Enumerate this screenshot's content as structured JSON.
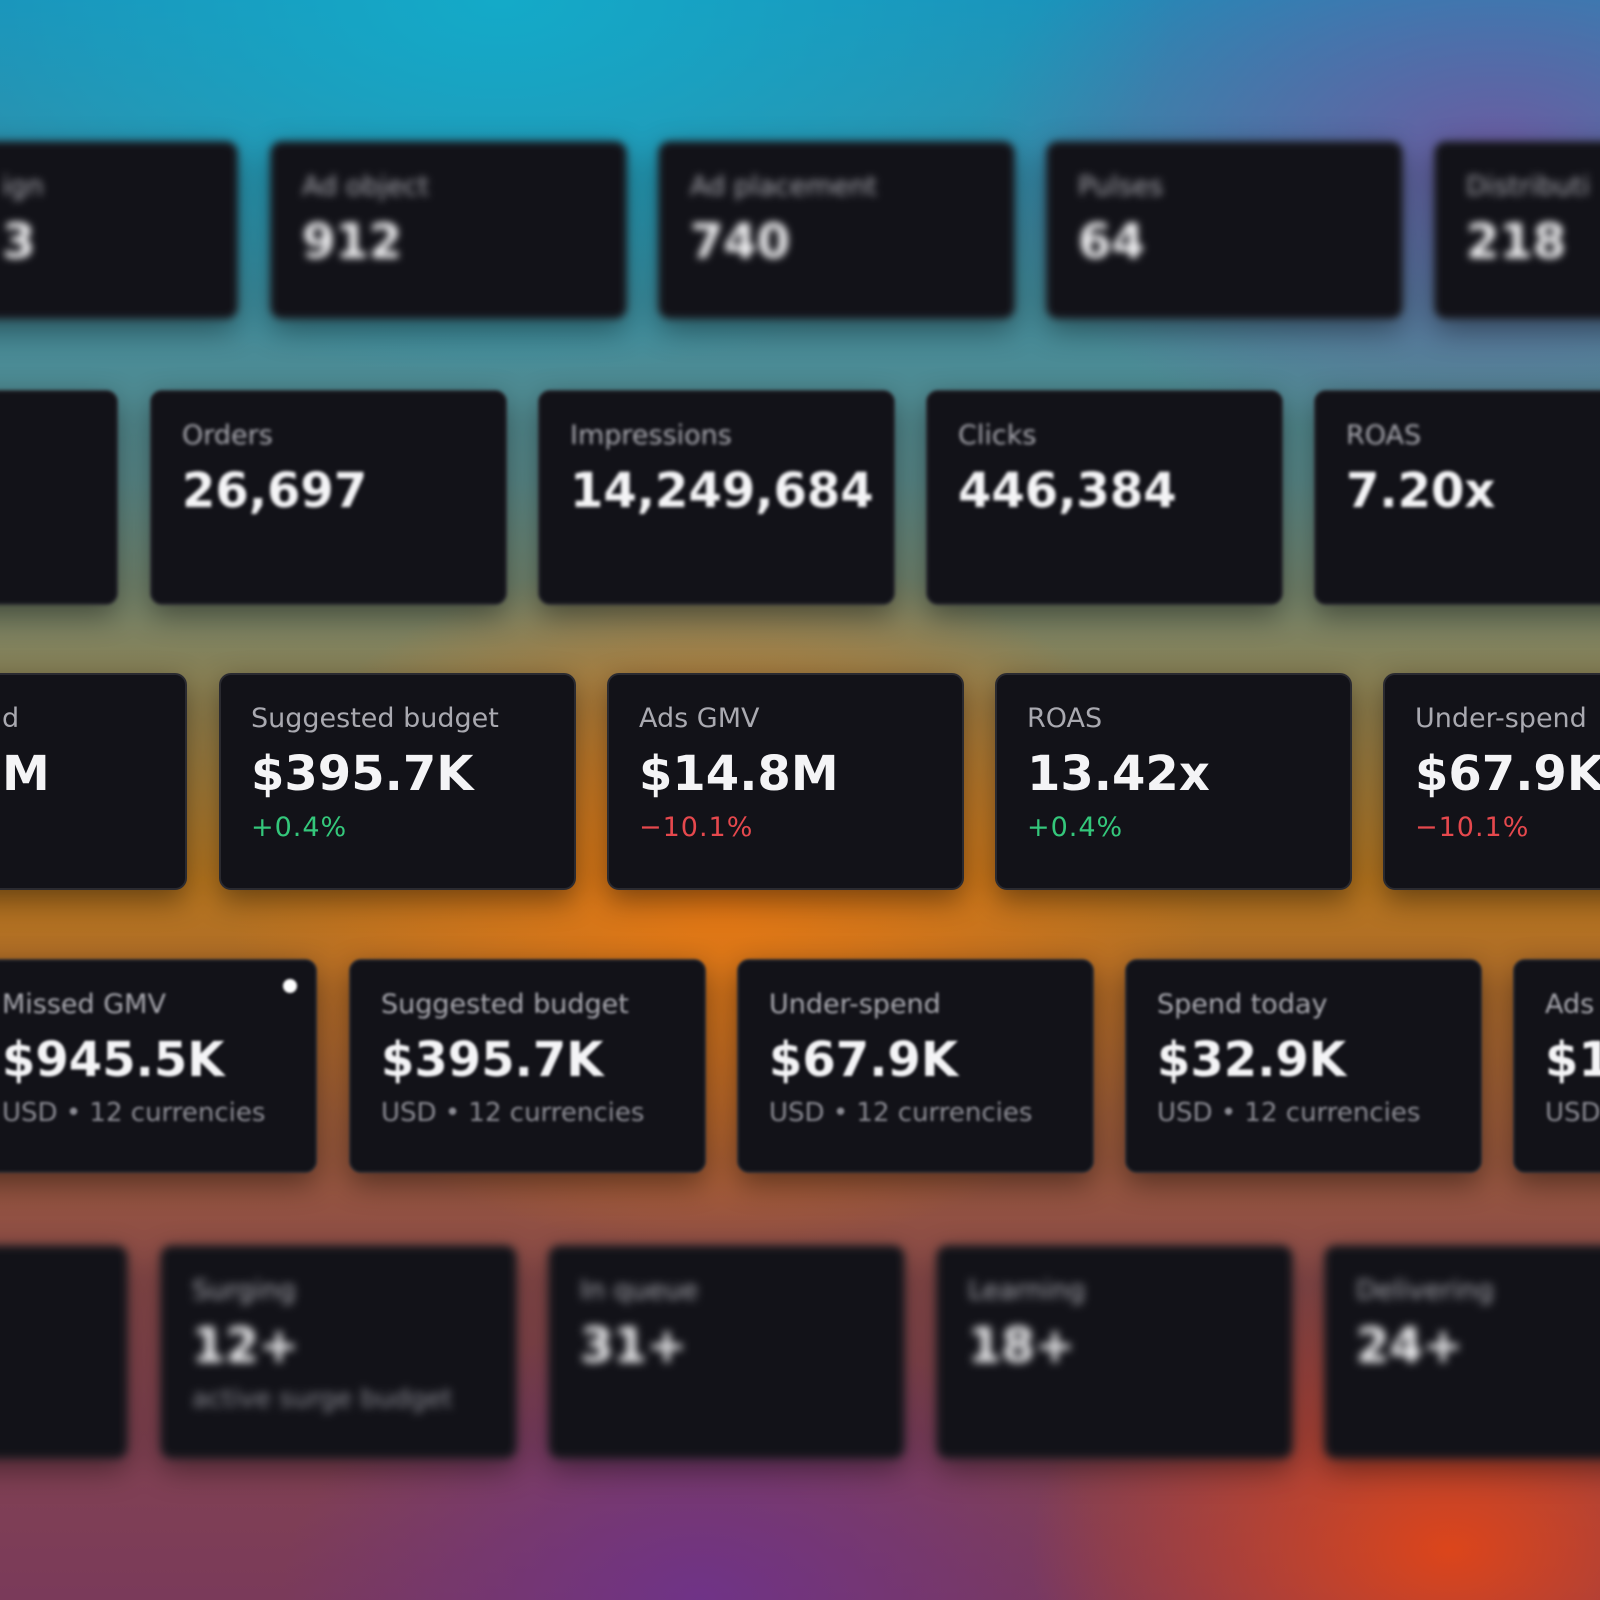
{
  "rows": [
    {
      "cards": [
        {
          "label": "ign",
          "value": "3"
        },
        {
          "label": "Ad object",
          "value": "912"
        },
        {
          "label": "Ad placement",
          "value": "740"
        },
        {
          "label": "Pulses",
          "value": "64"
        },
        {
          "label": "Distributi",
          "value": "218"
        }
      ]
    },
    {
      "cards": [
        {},
        {
          "label": "Orders",
          "value": "26,697"
        },
        {
          "label": "Impressions",
          "value": "14,249,684"
        },
        {
          "label": "Clicks",
          "value": "446,384"
        },
        {
          "label": "ROAS",
          "value": "7.20x"
        }
      ]
    },
    {
      "cards": [
        {
          "label": "d",
          "value": "M"
        },
        {
          "label": "Suggested budget",
          "value": "$395.7K",
          "delta": "+0.4%",
          "color": "#34c77b"
        },
        {
          "label": "Ads GMV",
          "value": "$14.8M",
          "delta": "−10.1%",
          "color": "#e5484d"
        },
        {
          "label": "ROAS",
          "value": "13.42x",
          "delta": "+0.4%",
          "color": "#34c77b"
        },
        {
          "label": "Under-spend",
          "value": "$67.9K",
          "delta": "−10.1%",
          "color": "#e5484d"
        }
      ]
    },
    {
      "cards": [
        {
          "label": "Missed GMV",
          "value": "$945.5K",
          "sub": "USD • 12 currencies"
        },
        {
          "label": "Suggested budget",
          "value": "$395.7K",
          "sub": "USD • 12 currencies"
        },
        {
          "label": "Under-spend",
          "value": "$67.9K",
          "sub": "USD • 12 currencies"
        },
        {
          "label": "Spend today",
          "value": "$32.9K",
          "sub": "USD • 12 currencies"
        },
        {
          "label": "Ads",
          "value": "$1",
          "sub": "USD"
        }
      ]
    },
    {
      "cards": [
        {},
        {
          "label": "Surging",
          "value": "12+",
          "sub": "active surge budget"
        },
        {
          "label": "In queue",
          "value": "31+"
        },
        {
          "label": "Learning",
          "value": "18+"
        },
        {
          "label": "Delivering",
          "value": "24+"
        }
      ]
    }
  ]
}
